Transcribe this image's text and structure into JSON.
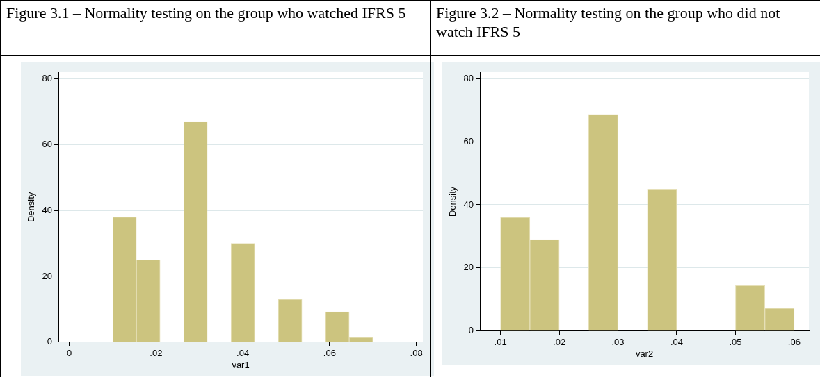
{
  "chart_data": [
    {
      "type": "histogram",
      "title": "Figure 3.1 – Normality testing on the group who watched IFRS 5",
      "xlabel": "var1",
      "ylabel": "Density",
      "color": "#ccc47f",
      "bins": [
        0.01,
        0.0155,
        0.0209,
        0.0264,
        0.0318,
        0.0373,
        0.0427,
        0.0482,
        0.0536,
        0.0591,
        0.0645,
        0.07
      ],
      "values": [
        38,
        25,
        0,
        67,
        0,
        30,
        0,
        13,
        0,
        9.2,
        1.4
      ],
      "xlim": [
        -0.0025,
        0.0815
      ],
      "xticks": [
        0,
        {
          "value": 0.02,
          "label": ".02"
        },
        {
          "value": 0.04,
          "label": ".04"
        },
        {
          "value": 0.06,
          "label": ".06"
        },
        {
          "value": 0.08,
          "label": ".08"
        }
      ],
      "ylim": [
        0,
        82
      ],
      "yticks": [
        0,
        20,
        40,
        60,
        80
      ],
      "grid": "y",
      "legend": false
    },
    {
      "type": "histogram",
      "title": "Figure 3.2 – Normality testing on the group who did not watch IFRS 5",
      "xlabel": "var2",
      "ylabel": "Density",
      "color": "#ccc47f",
      "bins": [
        0.01,
        0.015,
        0.02,
        0.025,
        0.03,
        0.035,
        0.04,
        0.045,
        0.05,
        0.055,
        0.06
      ],
      "values": [
        36,
        29,
        0,
        68.6,
        0,
        45,
        0,
        0,
        14.4,
        7.2
      ],
      "xlim": [
        0.0065,
        0.0625
      ],
      "xticks": [
        {
          "value": 0.01,
          "label": ".01"
        },
        {
          "value": 0.02,
          "label": ".02"
        },
        {
          "value": 0.03,
          "label": ".03"
        },
        {
          "value": 0.04,
          "label": ".04"
        },
        {
          "value": 0.05,
          "label": ".05"
        },
        {
          "value": 0.06,
          "label": ".06"
        }
      ],
      "ylim": [
        0,
        82
      ],
      "yticks": [
        0,
        20,
        40,
        60,
        80
      ],
      "grid": "y",
      "legend": false
    }
  ]
}
